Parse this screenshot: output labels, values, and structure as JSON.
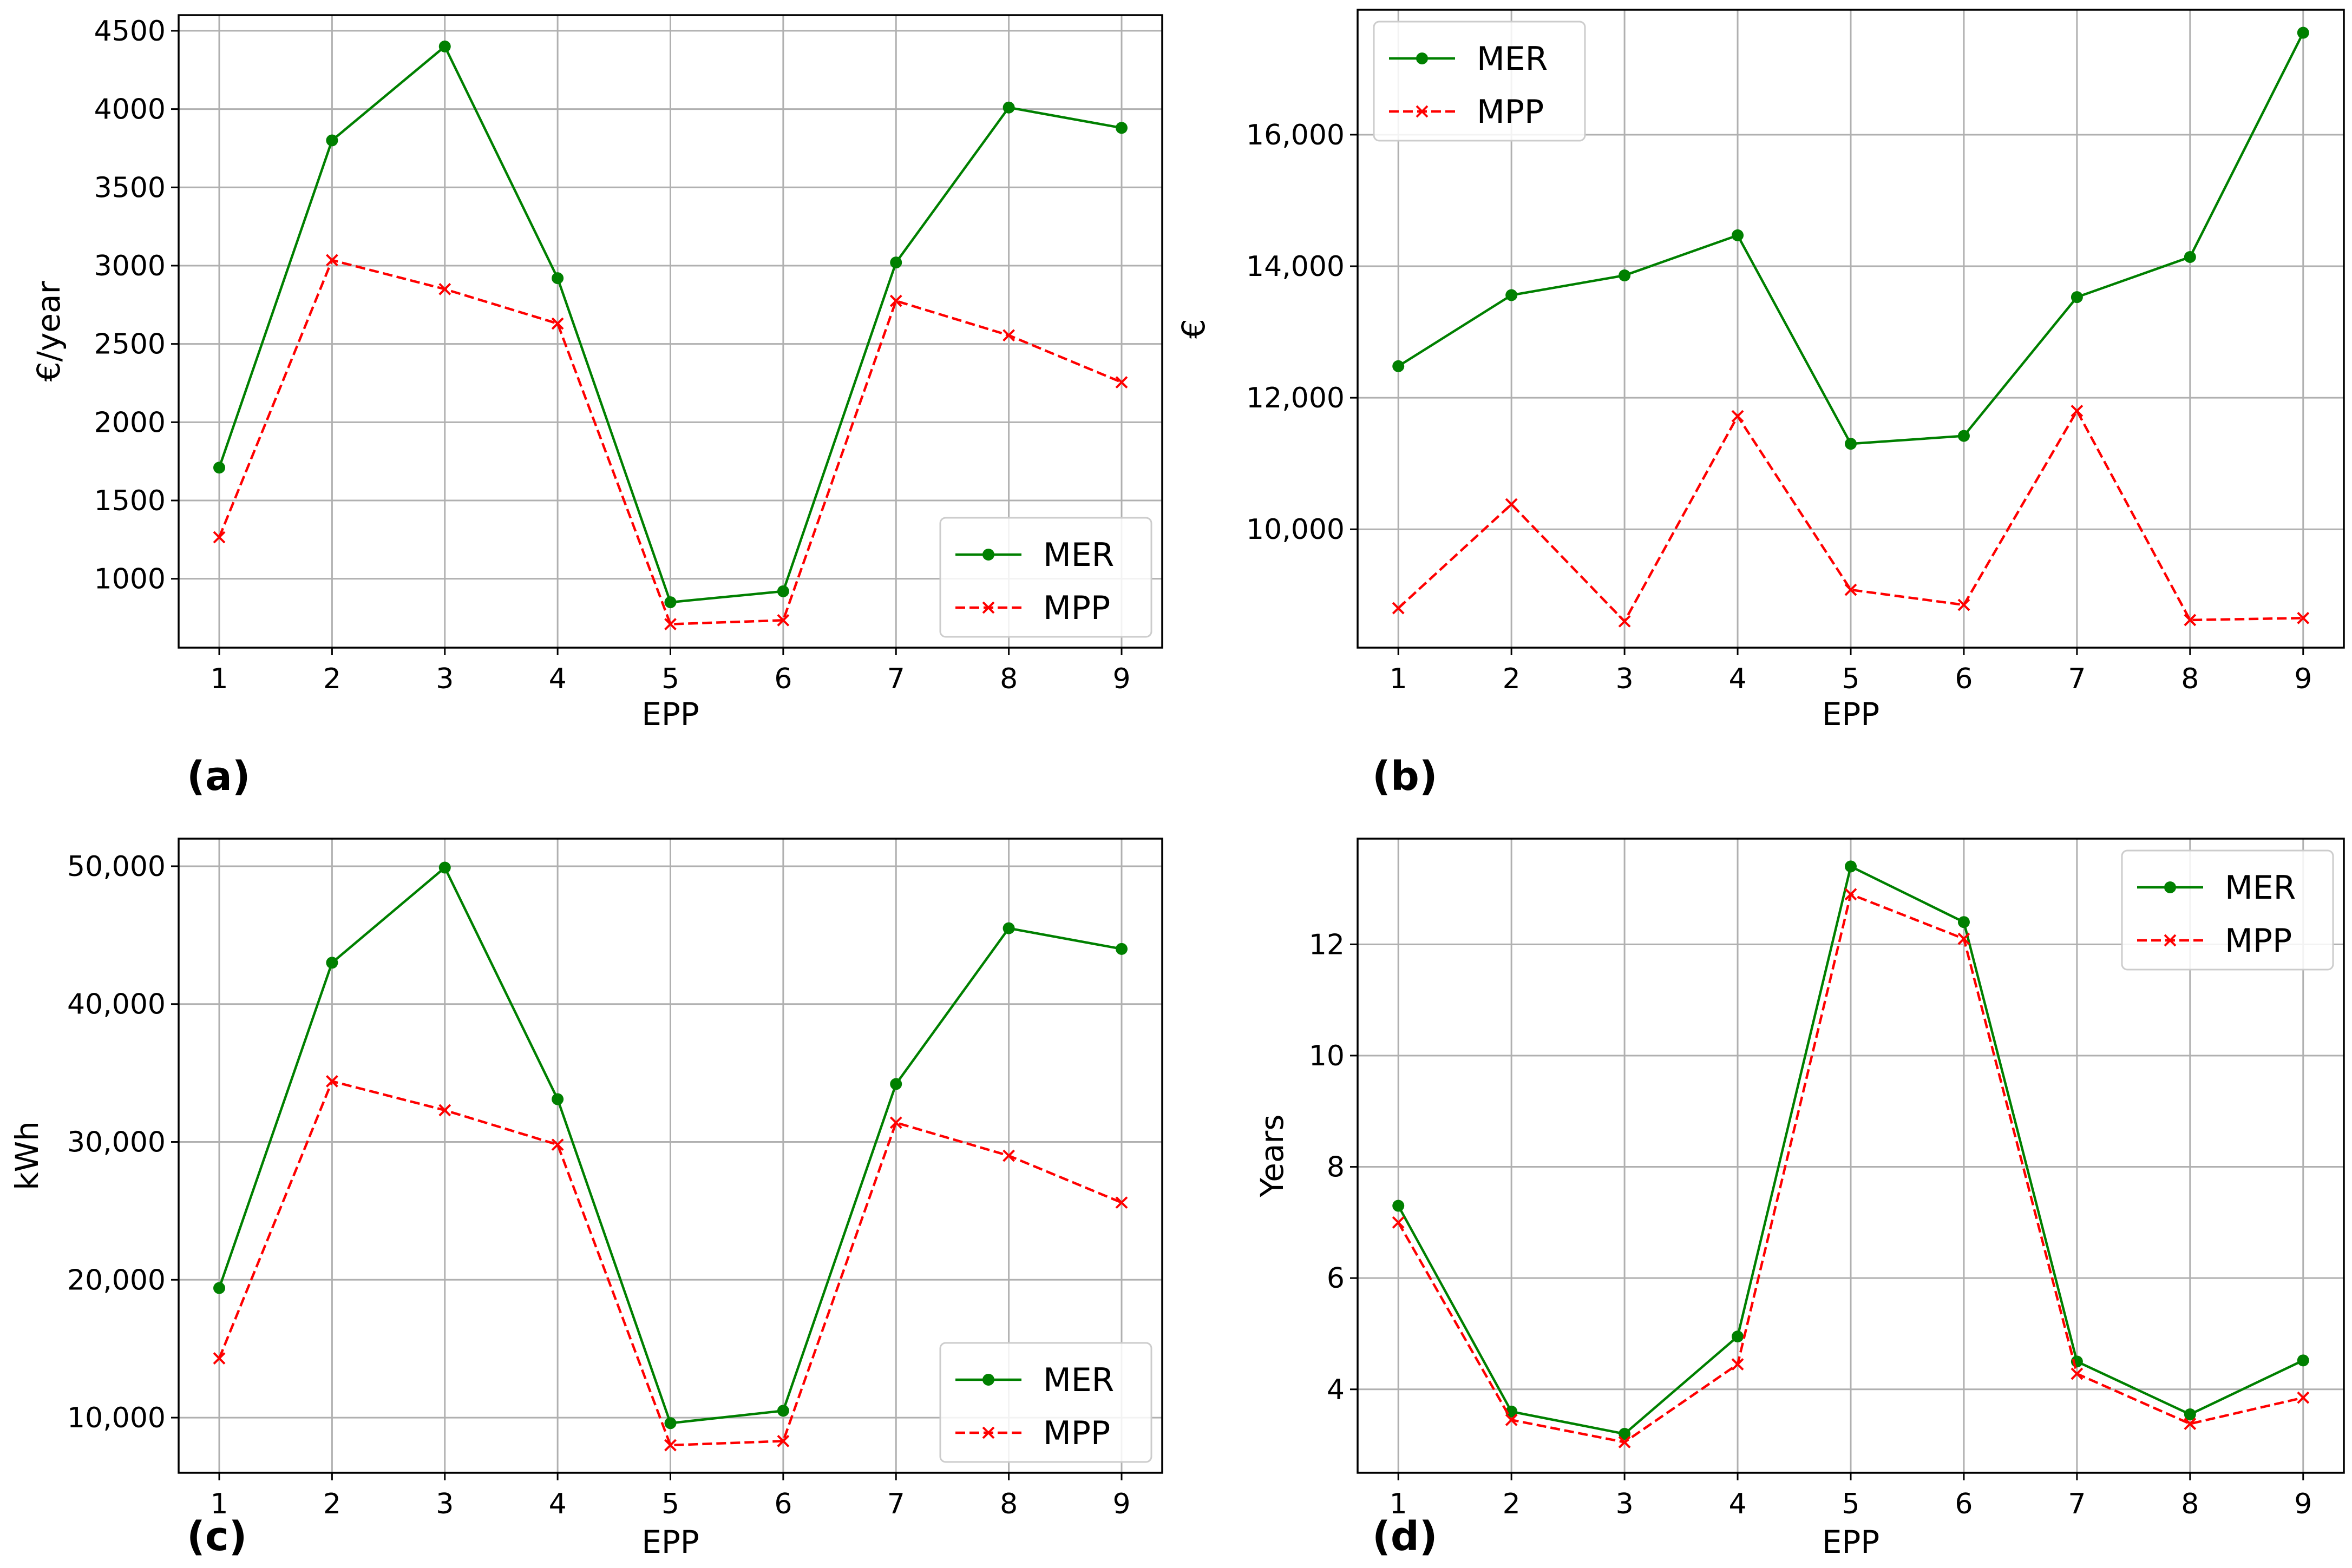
{
  "figure": {
    "colors": {
      "MER": "#008000",
      "MPP": "#ff0000"
    }
  },
  "chart_data": [
    {
      "panel": "(a)",
      "type": "line",
      "xlabel": "EPP",
      "ylabel": "€/year",
      "x": [
        1,
        2,
        3,
        4,
        5,
        6,
        7,
        8,
        9
      ],
      "xticks": [
        "1",
        "2",
        "3",
        "4",
        "5",
        "6",
        "7",
        "8",
        "9"
      ],
      "ylim": [
        560,
        4600
      ],
      "yticks": [
        1000,
        1500,
        2000,
        2500,
        3000,
        3500,
        4000,
        4500
      ],
      "ytick_labels": [
        "1000",
        "1500",
        "2000",
        "2500",
        "3000",
        "3500",
        "4000",
        "4500"
      ],
      "grid": true,
      "legend": "lower-right",
      "series": [
        {
          "name": "MER",
          "marker": "circle",
          "linestyle": "solid",
          "values": [
            1710,
            3800,
            4400,
            2920,
            850,
            920,
            3020,
            4010,
            3880
          ]
        },
        {
          "name": "MPP",
          "marker": "x",
          "linestyle": "dashed",
          "values": [
            1265,
            3035,
            2850,
            2630,
            710,
            735,
            2775,
            2555,
            2255
          ]
        }
      ]
    },
    {
      "panel": "(b)",
      "type": "line",
      "xlabel": "EPP",
      "ylabel": "€",
      "x": [
        1,
        2,
        3,
        4,
        5,
        6,
        7,
        8,
        9
      ],
      "xticks": [
        "1",
        "2",
        "3",
        "4",
        "5",
        "6",
        "7",
        "8",
        "9"
      ],
      "ylim": [
        8200,
        17900
      ],
      "yticks": [
        10000,
        12000,
        14000,
        16000
      ],
      "ytick_labels": [
        "10,000",
        "12,000",
        "14,000",
        "16,000"
      ],
      "grid": true,
      "legend": "upper-left",
      "series": [
        {
          "name": "MER",
          "marker": "circle",
          "linestyle": "solid",
          "values": [
            12480,
            13560,
            13860,
            14470,
            11300,
            11420,
            13530,
            14140,
            17550
          ]
        },
        {
          "name": "MPP",
          "marker": "x",
          "linestyle": "dashed",
          "values": [
            8800,
            10380,
            8600,
            11720,
            9080,
            8850,
            11800,
            8620,
            8650
          ]
        }
      ]
    },
    {
      "panel": "(c)",
      "type": "line",
      "xlabel": "EPP",
      "ylabel": "kWh",
      "x": [
        1,
        2,
        3,
        4,
        5,
        6,
        7,
        8,
        9
      ],
      "xticks": [
        "1",
        "2",
        "3",
        "4",
        "5",
        "6",
        "7",
        "8",
        "9"
      ],
      "ylim": [
        6000,
        52000
      ],
      "yticks": [
        10000,
        20000,
        30000,
        40000,
        50000
      ],
      "ytick_labels": [
        "10,000",
        "20,000",
        "30,000",
        "40,000",
        "50,000"
      ],
      "grid": true,
      "legend": "lower-right",
      "series": [
        {
          "name": "MER",
          "marker": "circle",
          "linestyle": "solid",
          "values": [
            19400,
            43000,
            49900,
            33100,
            9600,
            10500,
            34200,
            45500,
            44000
          ]
        },
        {
          "name": "MPP",
          "marker": "x",
          "linestyle": "dashed",
          "values": [
            14300,
            34400,
            32300,
            29800,
            8000,
            8300,
            31400,
            29000,
            25600
          ]
        }
      ]
    },
    {
      "panel": "(d)",
      "type": "line",
      "xlabel": "EPP",
      "ylabel": "Years",
      "x": [
        1,
        2,
        3,
        4,
        5,
        6,
        7,
        8,
        9
      ],
      "xticks": [
        "1",
        "2",
        "3",
        "4",
        "5",
        "6",
        "7",
        "8",
        "9"
      ],
      "ylim": [
        2.5,
        13.9
      ],
      "yticks": [
        4,
        6,
        8,
        10,
        12
      ],
      "ytick_labels": [
        "4",
        "6",
        "8",
        "10",
        "12"
      ],
      "grid": true,
      "legend": "upper-right",
      "series": [
        {
          "name": "MER",
          "marker": "circle",
          "linestyle": "solid",
          "values": [
            7.3,
            3.6,
            3.2,
            4.95,
            13.4,
            12.4,
            4.5,
            3.55,
            4.52
          ]
        },
        {
          "name": "MPP",
          "marker": "x",
          "linestyle": "dashed",
          "values": [
            7.0,
            3.45,
            3.05,
            4.45,
            12.9,
            12.1,
            4.28,
            3.38,
            3.85
          ]
        }
      ]
    }
  ]
}
